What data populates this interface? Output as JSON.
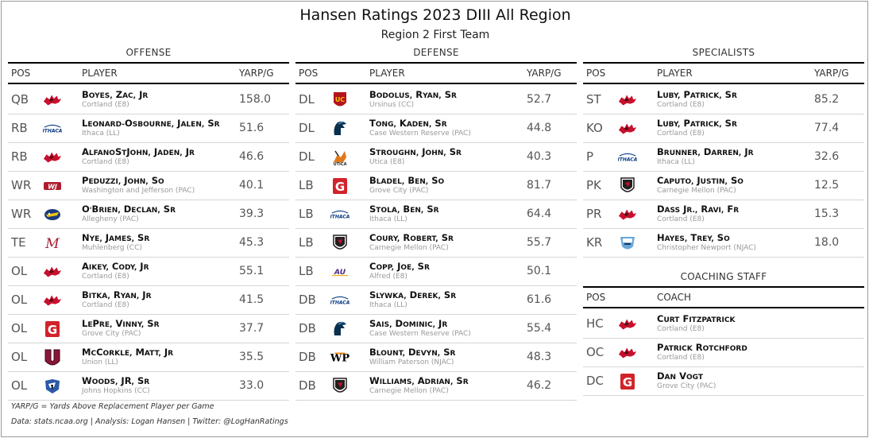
{
  "header": {
    "title": "Hansen Ratings 2023 DIII All Region",
    "subtitle": "Region 2 First Team"
  },
  "offense": {
    "label": "OFFENSE",
    "col_pos": "POS",
    "col_player": "PLAYER",
    "col_value": "YARP/G",
    "rows": [
      {
        "pos": "QB",
        "name": "Boyes, Zac, Jr",
        "school": "Cortland (E8)",
        "value": "158.0",
        "logo": "cortland-red-dragon"
      },
      {
        "pos": "RB",
        "name": "Leonard-Osbourne, Jalen, Sr",
        "school": "Ithaca (LL)",
        "value": "51.6",
        "logo": "ithaca-wordmark"
      },
      {
        "pos": "RB",
        "name": "AlfanoStJohn, Jaden, Jr",
        "school": "Cortland (E8)",
        "value": "46.6",
        "logo": "cortland-red-dragon"
      },
      {
        "pos": "WR",
        "name": "Peduzzi, John, So",
        "school": "Washington and Jefferson (PAC)",
        "value": "40.1",
        "logo": "wj-monogram"
      },
      {
        "pos": "WR",
        "name": "O'Brien, Declan, Sr",
        "school": "Allegheny (PAC)",
        "value": "39.3",
        "logo": "allegheny-gator"
      },
      {
        "pos": "TE",
        "name": "Nye, James, Sr",
        "school": "Muhlenberg (CC)",
        "value": "45.3",
        "logo": "muhlenberg-m"
      },
      {
        "pos": "OL",
        "name": "Aikey, Cody, Jr",
        "school": "Cortland (E8)",
        "value": "55.1",
        "logo": "cortland-red-dragon"
      },
      {
        "pos": "OL",
        "name": "Bitka, Ryan, Jr",
        "school": "Cortland (E8)",
        "value": "41.5",
        "logo": "cortland-red-dragon"
      },
      {
        "pos": "OL",
        "name": "LePre, Vinny, Sr",
        "school": "Grove City (PAC)",
        "value": "37.7",
        "logo": "grove-city-g"
      },
      {
        "pos": "OL",
        "name": "McCorkle, Matt, Jr",
        "school": "Union (LL)",
        "value": "35.5",
        "logo": "union-u"
      },
      {
        "pos": "OL",
        "name": "Woods, JR, Sr",
        "school": "Johns Hopkins (CC)",
        "value": "33.0",
        "logo": "johns-hopkins-jay"
      }
    ]
  },
  "defense": {
    "label": "DEFENSE",
    "col_pos": "POS",
    "col_player": "PLAYER",
    "col_value": "YARP/G",
    "rows": [
      {
        "pos": "DL",
        "name": "Bodolus, Ryan, Sr",
        "school": "Ursinus (CC)",
        "value": "52.7",
        "logo": "ursinus-uc"
      },
      {
        "pos": "DL",
        "name": "Tong, Kaden, Sr",
        "school": "Case Western Reserve (PAC)",
        "value": "44.8",
        "logo": "case-spartan"
      },
      {
        "pos": "DL",
        "name": "Stroughn, John, Sr",
        "school": "Utica (E8)",
        "value": "40.3",
        "logo": "utica-pioneer"
      },
      {
        "pos": "LB",
        "name": "Bladel, Ben, So",
        "school": "Grove City (PAC)",
        "value": "81.7",
        "logo": "grove-city-g"
      },
      {
        "pos": "LB",
        "name": "Stola, Ben, Sr",
        "school": "Ithaca (LL)",
        "value": "64.4",
        "logo": "ithaca-wordmark"
      },
      {
        "pos": "LB",
        "name": "Coury, Robert, Sr",
        "school": "Carnegie Mellon (PAC)",
        "value": "55.7",
        "logo": "carnegie-tartan-shield"
      },
      {
        "pos": "LB",
        "name": "Copp, Joe, Sr",
        "school": "Alfred (E8)",
        "value": "50.1",
        "logo": "alfred-au"
      },
      {
        "pos": "DB",
        "name": "Slywka, Derek, Sr",
        "school": "Ithaca (LL)",
        "value": "61.6",
        "logo": "ithaca-wordmark"
      },
      {
        "pos": "DB",
        "name": "Sais, Dominic, Jr",
        "school": "Case Western Reserve (PAC)",
        "value": "55.4",
        "logo": "case-spartan"
      },
      {
        "pos": "DB",
        "name": "Blount, Devyn, Sr",
        "school": "William Paterson (NJAC)",
        "value": "48.3",
        "logo": "william-paterson-wp"
      },
      {
        "pos": "DB",
        "name": "Williams, Adrian, Sr",
        "school": "Carnegie Mellon (PAC)",
        "value": "46.2",
        "logo": "carnegie-tartan-shield"
      }
    ]
  },
  "specialists": {
    "label": "SPECIALISTS",
    "col_pos": "POS",
    "col_player": "PLAYER",
    "col_value": "YARP/G",
    "rows": [
      {
        "pos": "ST",
        "name": "Luby, Patrick, Sr",
        "school": "Cortland (E8)",
        "value": "85.2",
        "logo": "cortland-red-dragon"
      },
      {
        "pos": "KO",
        "name": "Luby, Patrick, Sr",
        "school": "Cortland (E8)",
        "value": "77.4",
        "logo": "cortland-red-dragon"
      },
      {
        "pos": "P",
        "name": "Brunner, Darren, Jr",
        "school": "Ithaca (LL)",
        "value": "32.6",
        "logo": "ithaca-wordmark"
      },
      {
        "pos": "PK",
        "name": "Caputo, Justin, So",
        "school": "Carnegie Mellon (PAC)",
        "value": "12.5",
        "logo": "carnegie-tartan-shield"
      },
      {
        "pos": "PR",
        "name": "Dass Jr., Ravi, Fr",
        "school": "Cortland (E8)",
        "value": "15.3",
        "logo": "cortland-red-dragon"
      },
      {
        "pos": "KR",
        "name": "Hayes, Trey, So",
        "school": "Christopher Newport (NJAC)",
        "value": "18.0",
        "logo": "cnu-captains"
      }
    ]
  },
  "coaching": {
    "label": "COACHING STAFF",
    "col_pos": "POS",
    "col_coach": "COACH",
    "rows": [
      {
        "pos": "HC",
        "name": "Curt Fitzpatrick",
        "school": "Cortland (E8)",
        "logo": "cortland-red-dragon"
      },
      {
        "pos": "OC",
        "name": "Patrick Rotchford",
        "school": "Cortland (E8)",
        "logo": "cortland-red-dragon"
      },
      {
        "pos": "DC",
        "name": "Dan Vogt",
        "school": "Grove City (PAC)",
        "logo": "grove-city-g"
      }
    ]
  },
  "footer": {
    "definition": "YARP/G = Yards Above Replacement Player per Game",
    "credits": "Data: stats.ncaa.org | Analysis: Logan Hansen | Twitter: @LogHanRatings"
  },
  "colors": {
    "cortland": "#c8102e",
    "ithaca": "#0a3a85",
    "grove_city": "#d2232a",
    "carnegie": "#231f20",
    "case": "#0a304e",
    "union": "#8a1538"
  }
}
